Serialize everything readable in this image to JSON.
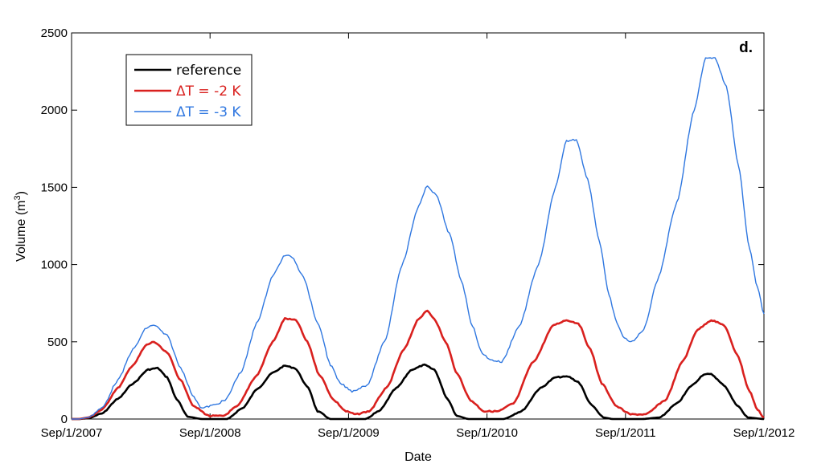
{
  "chart_data": {
    "type": "line",
    "panel_label": "d.",
    "xlabel": "Date",
    "ylabel_main": "Volume (m",
    "ylabel_sup": "3",
    "ylabel_close": ")",
    "x_range": [
      "2007-09-01",
      "2012-09-01"
    ],
    "ylim": [
      0,
      2500
    ],
    "yticks": [
      0,
      500,
      1000,
      1500,
      2000,
      2500
    ],
    "xticks": [
      "Sep/1/2007",
      "Sep/1/2008",
      "Sep/1/2009",
      "Sep/1/2010",
      "Sep/1/2011",
      "Sep/1/2012"
    ],
    "grid": false,
    "legend_position": "top-left",
    "series": [
      {
        "name": "reference",
        "color": "#000000",
        "x": [
          "2007-09-01",
          "2007-09-19",
          "2007-10-15",
          "2007-11-20",
          "2008-01-01",
          "2008-02-10",
          "2008-03-21",
          "2008-04-15",
          "2008-05-10",
          "2008-06-04",
          "2008-07-03",
          "2008-08-10",
          "2008-10-15",
          "2008-11-25",
          "2009-01-05",
          "2009-02-13",
          "2009-03-17",
          "2009-04-12",
          "2009-05-18",
          "2009-06-11",
          "2009-07-15",
          "2009-10-15",
          "2009-11-20",
          "2010-01-05",
          "2010-02-15",
          "2010-03-20",
          "2010-04-15",
          "2010-05-20",
          "2010-06-14",
          "2010-07-15",
          "2010-10-15",
          "2010-12-01",
          "2011-01-20",
          "2011-03-01",
          "2011-04-03",
          "2011-04-30",
          "2011-06-04",
          "2011-07-05",
          "2011-07-30",
          "2011-10-15",
          "2011-12-01",
          "2012-01-15",
          "2012-02-25",
          "2012-03-27",
          "2012-04-15",
          "2012-05-18",
          "2012-06-22",
          "2012-07-20",
          "2012-09-01"
        ],
        "values": [
          0,
          0,
          5,
          35,
          130,
          230,
          320,
          330,
          270,
          130,
          15,
          0,
          0,
          70,
          200,
          300,
          345,
          330,
          200,
          50,
          0,
          0,
          50,
          200,
          320,
          350,
          320,
          130,
          20,
          0,
          0,
          50,
          200,
          270,
          275,
          240,
          90,
          10,
          0,
          0,
          10,
          100,
          220,
          290,
          290,
          220,
          90,
          10,
          0
        ]
      },
      {
        "name": "ΔT = -2 K",
        "color": "#d9201e",
        "x": [
          "2007-09-01",
          "2007-09-19",
          "2007-10-15",
          "2007-11-20",
          "2008-01-01",
          "2008-02-10",
          "2008-03-17",
          "2008-04-05",
          "2008-05-10",
          "2008-06-15",
          "2008-07-20",
          "2008-08-30",
          "2008-10-05",
          "2008-11-10",
          "2009-01-01",
          "2009-02-13",
          "2009-03-17",
          "2009-04-15",
          "2009-05-15",
          "2009-06-15",
          "2009-07-25",
          "2009-08-25",
          "2009-09-20",
          "2009-10-25",
          "2009-12-10",
          "2010-01-25",
          "2010-03-05",
          "2010-03-28",
          "2010-04-15",
          "2010-05-15",
          "2010-06-15",
          "2010-07-20",
          "2010-08-25",
          "2010-09-30",
          "2010-11-10",
          "2011-01-01",
          "2011-02-25",
          "2011-03-30",
          "2011-04-30",
          "2011-06-01",
          "2011-07-01",
          "2011-08-10",
          "2011-09-15",
          "2011-10-25",
          "2011-12-15",
          "2012-02-01",
          "2012-03-10",
          "2012-04-15",
          "2012-05-18",
          "2012-06-22",
          "2012-07-25",
          "2012-08-15",
          "2012-09-01"
        ],
        "values": [
          0,
          0,
          10,
          60,
          200,
          350,
          480,
          500,
          430,
          250,
          80,
          20,
          20,
          80,
          280,
          500,
          650,
          640,
          500,
          290,
          120,
          50,
          30,
          50,
          200,
          450,
          650,
          700,
          650,
          500,
          290,
          120,
          50,
          50,
          100,
          370,
          610,
          640,
          620,
          450,
          230,
          80,
          30,
          30,
          120,
          380,
          580,
          640,
          610,
          420,
          180,
          60,
          10
        ]
      },
      {
        "name": "ΔT = -3 K",
        "color": "#2f77e0",
        "x": [
          "2007-09-01",
          "2007-09-19",
          "2007-10-15",
          "2007-11-20",
          "2008-01-01",
          "2008-02-10",
          "2008-03-17",
          "2008-04-05",
          "2008-05-10",
          "2008-06-15",
          "2008-07-20",
          "2008-08-10",
          "2008-09-10",
          "2008-10-10",
          "2008-11-20",
          "2009-01-05",
          "2009-02-13",
          "2009-03-17",
          "2009-04-05",
          "2009-05-01",
          "2009-06-15",
          "2009-07-15",
          "2009-08-10",
          "2009-09-10",
          "2009-10-20",
          "2009-12-05",
          "2010-01-20",
          "2010-03-05",
          "2010-03-28",
          "2010-04-20",
          "2010-05-25",
          "2010-06-25",
          "2010-07-25",
          "2010-08-20",
          "2010-09-15",
          "2010-10-10",
          "2010-11-25",
          "2011-01-15",
          "2011-03-01",
          "2011-03-30",
          "2011-04-25",
          "2011-05-25",
          "2011-06-25",
          "2011-07-20",
          "2011-08-10",
          "2011-08-30",
          "2011-09-20",
          "2011-10-20",
          "2011-11-25",
          "2012-01-15",
          "2012-03-01",
          "2012-03-31",
          "2012-04-25",
          "2012-05-25",
          "2012-06-25",
          "2012-07-25",
          "2012-08-15",
          "2012-09-01"
        ],
        "values": [
          0,
          0,
          10,
          70,
          250,
          450,
          590,
          610,
          540,
          330,
          140,
          70,
          90,
          120,
          300,
          640,
          930,
          1060,
          1050,
          940,
          600,
          350,
          230,
          180,
          220,
          500,
          1000,
          1380,
          1510,
          1450,
          1200,
          900,
          600,
          420,
          380,
          370,
          600,
          1000,
          1500,
          1800,
          1810,
          1550,
          1150,
          800,
          620,
          520,
          500,
          580,
          900,
          1400,
          2000,
          2340,
          2340,
          2150,
          1650,
          1100,
          850,
          680
        ]
      }
    ]
  }
}
